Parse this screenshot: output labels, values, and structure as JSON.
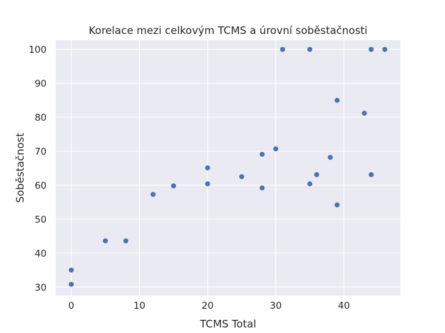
{
  "chart_data": {
    "type": "scatter",
    "title": "Korelace mezi celkovým TCMS a úrovní soběstačnosti",
    "xlabel": "TCMS Total",
    "ylabel": "Soběstačnost",
    "xlim": [
      -2.3,
      48.3
    ],
    "ylim": [
      27.5,
      102.7
    ],
    "xticks": [
      0,
      10,
      20,
      30,
      40
    ],
    "yticks": [
      30,
      40,
      50,
      60,
      70,
      80,
      90,
      100
    ],
    "grid": true,
    "marker_color": "#4c72b0",
    "background_color": "#eaeaf2",
    "points": [
      {
        "x": 0,
        "y": 35.0
      },
      {
        "x": 0,
        "y": 30.8
      },
      {
        "x": 5,
        "y": 43.6
      },
      {
        "x": 8,
        "y": 43.6
      },
      {
        "x": 12,
        "y": 57.3
      },
      {
        "x": 15,
        "y": 59.8
      },
      {
        "x": 20,
        "y": 65.1
      },
      {
        "x": 20,
        "y": 60.4
      },
      {
        "x": 25,
        "y": 62.5
      },
      {
        "x": 28,
        "y": 69.1
      },
      {
        "x": 28,
        "y": 59.2
      },
      {
        "x": 30,
        "y": 70.7
      },
      {
        "x": 31,
        "y": 100.0
      },
      {
        "x": 35,
        "y": 100.0
      },
      {
        "x": 35,
        "y": 60.4
      },
      {
        "x": 36,
        "y": 63.1
      },
      {
        "x": 38,
        "y": 68.2
      },
      {
        "x": 39,
        "y": 85.0
      },
      {
        "x": 39,
        "y": 54.2
      },
      {
        "x": 43,
        "y": 81.2
      },
      {
        "x": 44,
        "y": 100.0
      },
      {
        "x": 44,
        "y": 63.1
      },
      {
        "x": 46,
        "y": 100.0
      }
    ]
  }
}
